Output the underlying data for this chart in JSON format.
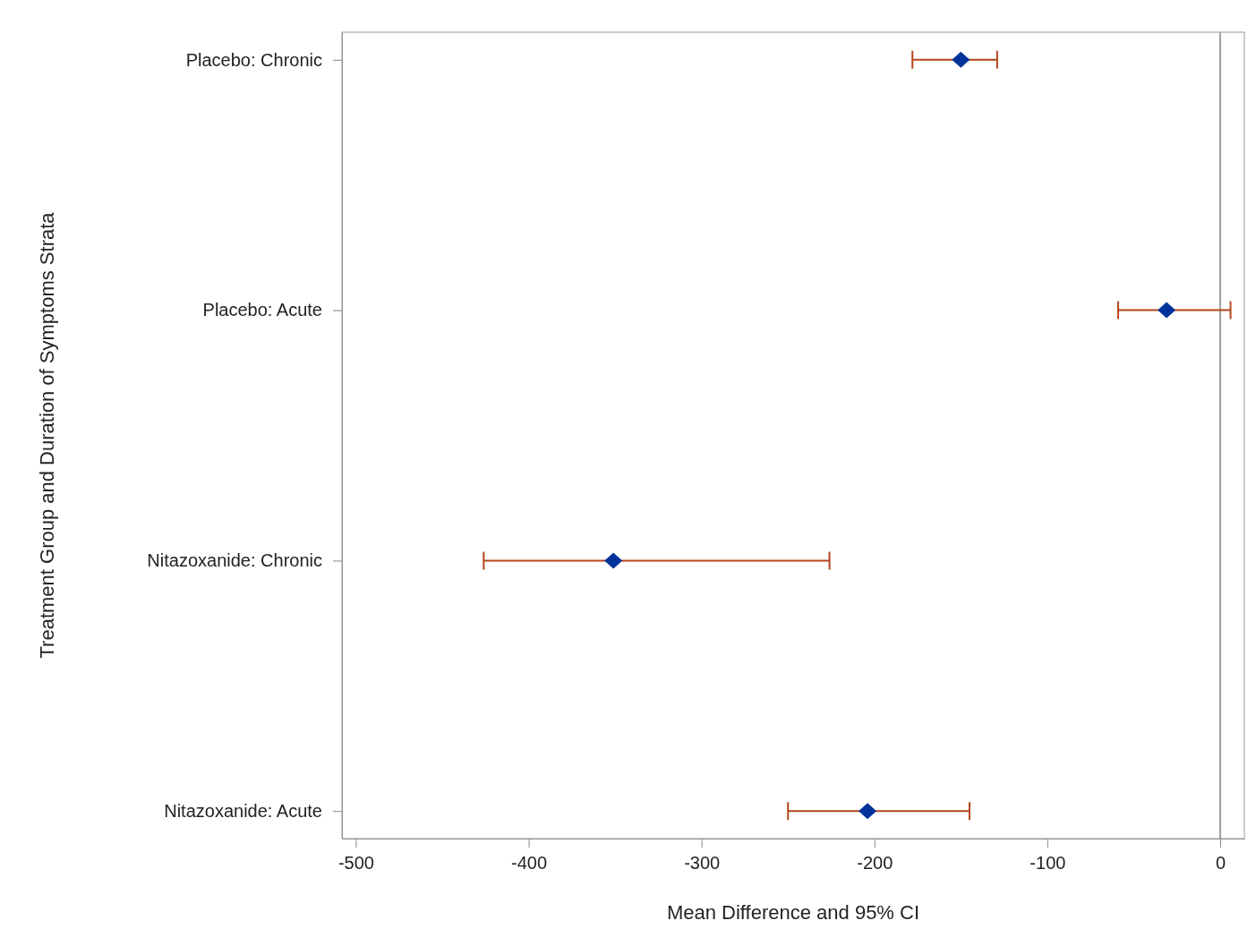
{
  "chart_data": {
    "type": "scatter",
    "orientation": "horizontal",
    "xlabel": "Mean Difference and 95% CI",
    "ylabel": "Treatment Group and Duration of Symptoms Strata",
    "categories": [
      "Placebo: Chronic",
      "Placebo: Acute",
      "Nitazoxanide: Chronic",
      "Nitazoxanide: Acute"
    ],
    "values": [
      -150,
      -31,
      -351,
      -204
    ],
    "errors": [
      [
        -178,
        -129
      ],
      [
        -59,
        6
      ],
      [
        -426,
        -226
      ],
      [
        -250,
        -145
      ]
    ],
    "color": "#003399",
    "xlim": [
      -508,
      14
    ],
    "xticks": [
      -500,
      -400,
      -300,
      -200,
      -100,
      0
    ],
    "ref_lines": [
      {
        "axis": "x",
        "value": 0,
        "color": "#a0a0a0"
      }
    ],
    "marker": "diamond"
  }
}
